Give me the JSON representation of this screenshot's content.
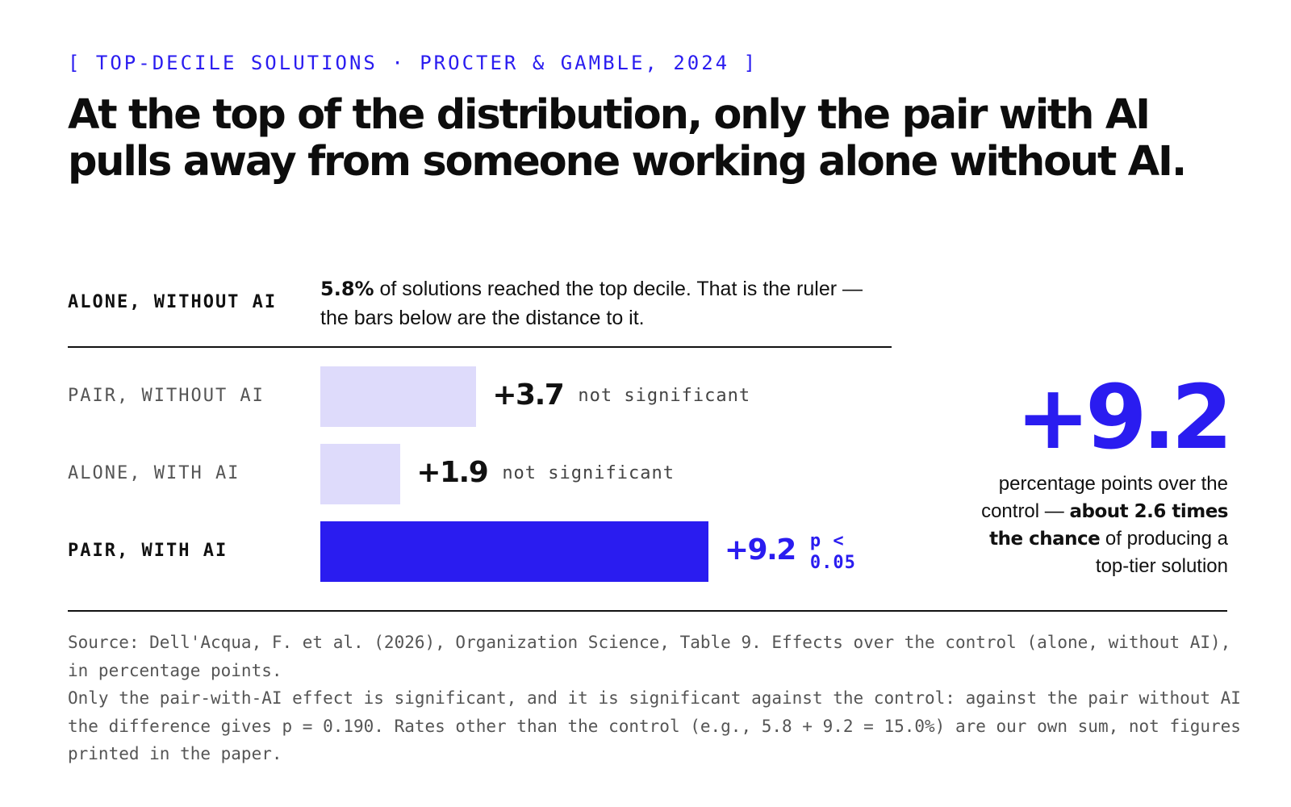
{
  "eyebrow": "[ TOP-DECILE SOLUTIONS · PROCTER & GAMBLE, 2024 ]",
  "headline": "At the top of the distribution, only the pair with AI pulls away from someone working alone without AI.",
  "control": {
    "label": "ALONE, WITHOUT AI",
    "rate": "5.8%",
    "text": " of solutions reached the top decile. That is the ruler — the bars below are the distance to it."
  },
  "chart_data": {
    "type": "bar",
    "orientation": "horizontal",
    "categories": [
      "PAIR, WITHOUT AI",
      "ALONE, WITH AI",
      "PAIR, WITH AI"
    ],
    "values": [
      3.7,
      1.9,
      9.2
    ],
    "value_labels": [
      "+3.7",
      "+1.9",
      "+9.2"
    ],
    "significance": [
      "not significant",
      "not significant",
      "p < 0.05"
    ],
    "highlight": [
      false,
      false,
      true
    ],
    "xlim": [
      0,
      18.5
    ],
    "grid": false,
    "colors": {
      "accent": "#2a1cf0",
      "muted": "#dedbfb"
    }
  },
  "callout": {
    "value": "+9.2",
    "caption_start": "percentage points over the control — ",
    "caption_bold": "about 2.6 times the chance",
    "caption_end": " of producing a top-tier solution"
  },
  "source": {
    "line1": "Source: Dell'Acqua, F. et al. (2026), Organization Science, Table 9. Effects over the control (alone, without AI), in percentage points.",
    "line2": "Only the pair-with-AI effect is significant, and it is significant against the control: against the pair without AI the difference gives p = 0.190. Rates other than the control (e.g., 5.8 + 9.2 = 15.0%) are our own sum, not figures printed in the paper."
  }
}
